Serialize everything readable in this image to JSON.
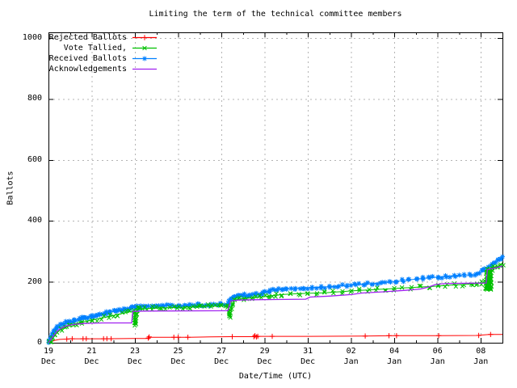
{
  "chart_data": {
    "type": "line",
    "title": "Limiting the term of the technical committee members",
    "xlabel": "Date/Time (UTC)",
    "ylabel": "Ballots",
    "xlim": [
      0,
      21
    ],
    "ylim": [
      0,
      1000
    ],
    "grid": true,
    "legend_position": "top-left",
    "x_unit": "days since 19 Dec 00:00",
    "y_ticks": [
      0,
      200,
      400,
      600,
      800,
      1000
    ],
    "x_ticks": [
      {
        "day": 0,
        "line1": "19",
        "line2": "Dec"
      },
      {
        "day": 2,
        "line1": "21",
        "line2": "Dec"
      },
      {
        "day": 4,
        "line1": "23",
        "line2": "Dec"
      },
      {
        "day": 6,
        "line1": "25",
        "line2": "Dec"
      },
      {
        "day": 8,
        "line1": "27",
        "line2": "Dec"
      },
      {
        "day": 10,
        "line1": "29",
        "line2": "Dec"
      },
      {
        "day": 12,
        "line1": "31",
        "line2": "Dec"
      },
      {
        "day": 14,
        "line1": "02",
        "line2": "Jan"
      },
      {
        "day": 16,
        "line1": "04",
        "line2": "Jan"
      },
      {
        "day": 18,
        "line1": "06",
        "line2": "Jan"
      },
      {
        "day": 20,
        "line1": "08",
        "line2": "Jan"
      }
    ],
    "colors": {
      "grid": "#b4b4b4",
      "border": "#000000",
      "text": "#000000",
      "background": "#ffffff"
    },
    "series": [
      {
        "name": "Rejected Ballots",
        "color": "#ff0000",
        "marker": "plus",
        "points": [
          [
            0,
            0
          ],
          [
            0.15,
            4
          ],
          [
            0.3,
            8
          ],
          [
            0.5,
            11
          ],
          [
            0.8,
            12
          ],
          [
            1,
            13
          ],
          [
            2.5,
            13
          ],
          [
            3.9,
            14
          ],
          [
            4.6,
            14
          ],
          [
            4.65,
            18
          ],
          [
            6.5,
            18
          ],
          [
            7.5,
            19
          ],
          [
            8.45,
            20
          ],
          [
            9.45,
            20
          ],
          [
            9.65,
            21
          ],
          [
            12,
            21
          ],
          [
            14.6,
            22
          ],
          [
            16,
            23
          ],
          [
            18,
            23
          ],
          [
            19.8,
            24
          ],
          [
            20.4,
            27
          ],
          [
            21,
            27
          ]
        ],
        "marker_points": [
          [
            0.85,
            12
          ],
          [
            1.1,
            13
          ],
          [
            1.6,
            13
          ],
          [
            1.75,
            13
          ],
          [
            2.55,
            13
          ],
          [
            2.7,
            13
          ],
          [
            2.9,
            13
          ],
          [
            4.62,
            15
          ],
          [
            4.66,
            19
          ],
          [
            5.8,
            18
          ],
          [
            6.0,
            18
          ],
          [
            6.45,
            18
          ],
          [
            8.5,
            20
          ],
          [
            9.5,
            20
          ],
          [
            9.55,
            23
          ],
          [
            9.62,
            19
          ],
          [
            9.68,
            21
          ],
          [
            10.35,
            21
          ],
          [
            14.65,
            22
          ],
          [
            15.75,
            23
          ],
          [
            16.1,
            23
          ],
          [
            18.05,
            23
          ],
          [
            19.9,
            24
          ],
          [
            20.45,
            27
          ]
        ]
      },
      {
        "name": "Vote Tallied,",
        "color": "#00c000",
        "marker": "cross",
        "points": [
          [
            0,
            0
          ],
          [
            0.1,
            6
          ],
          [
            0.2,
            16
          ],
          [
            0.3,
            26
          ],
          [
            0.45,
            36
          ],
          [
            0.6,
            45
          ],
          [
            0.8,
            52
          ],
          [
            1,
            58
          ],
          [
            1.3,
            63
          ],
          [
            1.6,
            68
          ],
          [
            2,
            74
          ],
          [
            2.4,
            80
          ],
          [
            2.8,
            86
          ],
          [
            3.2,
            93
          ],
          [
            3.6,
            99
          ],
          [
            3.95,
            105
          ],
          [
            4.0,
            57
          ],
          [
            4.05,
            95
          ],
          [
            4.1,
            110
          ],
          [
            4.4,
            111
          ],
          [
            4.8,
            113
          ],
          [
            5.2,
            114
          ],
          [
            5.6,
            115
          ],
          [
            6,
            116
          ],
          [
            6.5,
            117
          ],
          [
            7,
            119
          ],
          [
            7.5,
            120
          ],
          [
            8,
            121
          ],
          [
            8.3,
            122
          ],
          [
            8.4,
            84
          ],
          [
            8.5,
            120
          ],
          [
            8.6,
            140
          ],
          [
            8.8,
            143
          ],
          [
            9,
            145
          ],
          [
            9.4,
            147
          ],
          [
            9.8,
            149
          ],
          [
            10.2,
            153
          ],
          [
            10.5,
            156
          ],
          [
            10.8,
            158
          ],
          [
            11.2,
            160
          ],
          [
            11.6,
            161
          ],
          [
            12,
            162
          ],
          [
            12.4,
            163
          ],
          [
            12.8,
            164
          ],
          [
            13.2,
            166
          ],
          [
            13.6,
            168
          ],
          [
            14,
            170
          ],
          [
            14.4,
            172
          ],
          [
            14.8,
            173
          ],
          [
            15.2,
            175
          ],
          [
            15.6,
            176
          ],
          [
            16,
            178
          ],
          [
            16.4,
            180
          ],
          [
            16.8,
            181
          ],
          [
            17.2,
            183
          ],
          [
            17.6,
            184
          ],
          [
            18,
            186
          ],
          [
            18.4,
            188
          ],
          [
            18.8,
            190
          ],
          [
            19.2,
            191
          ],
          [
            19.6,
            193
          ],
          [
            19.85,
            194
          ],
          [
            20.05,
            196
          ],
          [
            20.2,
            198
          ],
          [
            20.25,
            174
          ],
          [
            20.3,
            240
          ],
          [
            20.35,
            176
          ],
          [
            20.4,
            238
          ],
          [
            20.45,
            178
          ],
          [
            20.5,
            242
          ],
          [
            20.6,
            246
          ],
          [
            20.75,
            250
          ],
          [
            20.9,
            254
          ],
          [
            21,
            258
          ]
        ]
      },
      {
        "name": "Received Ballots",
        "color": "#0080ff",
        "marker": "asterisk",
        "points": [
          [
            0,
            0
          ],
          [
            0.06,
            8
          ],
          [
            0.12,
            18
          ],
          [
            0.2,
            30
          ],
          [
            0.3,
            40
          ],
          [
            0.42,
            50
          ],
          [
            0.55,
            57
          ],
          [
            0.7,
            62
          ],
          [
            0.85,
            66
          ],
          [
            1,
            69
          ],
          [
            1.2,
            73
          ],
          [
            1.4,
            77
          ],
          [
            1.6,
            80
          ],
          [
            1.8,
            84
          ],
          [
            2,
            87
          ],
          [
            2.2,
            91
          ],
          [
            2.4,
            94
          ],
          [
            2.6,
            97
          ],
          [
            2.8,
            100
          ],
          [
            3,
            103
          ],
          [
            3.2,
            106
          ],
          [
            3.4,
            108
          ],
          [
            3.6,
            110
          ],
          [
            3.8,
            113
          ],
          [
            4,
            116
          ],
          [
            4.2,
            118
          ],
          [
            4.5,
            119
          ],
          [
            5,
            120
          ],
          [
            5.5,
            121
          ],
          [
            6,
            122
          ],
          [
            6.5,
            123
          ],
          [
            7,
            124
          ],
          [
            7.5,
            125
          ],
          [
            8,
            126
          ],
          [
            8.35,
            127
          ],
          [
            8.45,
            147
          ],
          [
            8.6,
            151
          ],
          [
            8.8,
            153
          ],
          [
            9,
            155
          ],
          [
            9.3,
            157
          ],
          [
            9.6,
            159
          ],
          [
            9.9,
            162
          ],
          [
            10.05,
            165
          ],
          [
            10.2,
            170
          ],
          [
            10.4,
            174
          ],
          [
            10.6,
            176
          ],
          [
            10.8,
            177
          ],
          [
            11,
            178
          ],
          [
            11.4,
            179
          ],
          [
            11.8,
            180
          ],
          [
            12.2,
            181
          ],
          [
            12.6,
            182
          ],
          [
            13,
            184
          ],
          [
            13.4,
            186
          ],
          [
            13.8,
            188
          ],
          [
            14.2,
            190
          ],
          [
            14.6,
            192
          ],
          [
            15,
            194
          ],
          [
            15.4,
            197
          ],
          [
            15.8,
            199
          ],
          [
            16.1,
            201
          ],
          [
            16.4,
            204
          ],
          [
            16.7,
            206
          ],
          [
            17,
            209
          ],
          [
            17.3,
            211
          ],
          [
            17.6,
            213
          ],
          [
            18,
            215
          ],
          [
            18.4,
            217
          ],
          [
            18.8,
            218
          ],
          [
            19.2,
            220
          ],
          [
            19.5,
            221
          ],
          [
            19.75,
            223
          ],
          [
            19.9,
            228
          ],
          [
            20.05,
            235
          ],
          [
            20.2,
            243
          ],
          [
            20.35,
            250
          ],
          [
            20.5,
            257
          ],
          [
            20.65,
            263
          ],
          [
            20.8,
            269
          ],
          [
            20.9,
            273
          ],
          [
            21,
            278
          ]
        ]
      },
      {
        "name": "Acknowledgements",
        "color": "#a020f0",
        "marker": "none",
        "points": [
          [
            0,
            0
          ],
          [
            0.2,
            20
          ],
          [
            0.4,
            38
          ],
          [
            0.6,
            48
          ],
          [
            0.8,
            54
          ],
          [
            1,
            58
          ],
          [
            1.3,
            61
          ],
          [
            1.6,
            63
          ],
          [
            2,
            64
          ],
          [
            2.5,
            65
          ],
          [
            3.85,
            65
          ],
          [
            3.9,
            103
          ],
          [
            4.5,
            104
          ],
          [
            8.3,
            105
          ],
          [
            8.42,
            137
          ],
          [
            8.8,
            140
          ],
          [
            9.5,
            141
          ],
          [
            10.5,
            142
          ],
          [
            11.9,
            143
          ],
          [
            12.1,
            150
          ],
          [
            13,
            153
          ],
          [
            14,
            158
          ],
          [
            14.5,
            163
          ],
          [
            15.5,
            167
          ],
          [
            16.5,
            172
          ],
          [
            17.2,
            176
          ],
          [
            17.6,
            183
          ],
          [
            17.9,
            191
          ],
          [
            18.3,
            194
          ],
          [
            19,
            195
          ],
          [
            20.25,
            196
          ],
          [
            20.3,
            240
          ],
          [
            20.7,
            246
          ],
          [
            21,
            252
          ]
        ]
      }
    ]
  }
}
